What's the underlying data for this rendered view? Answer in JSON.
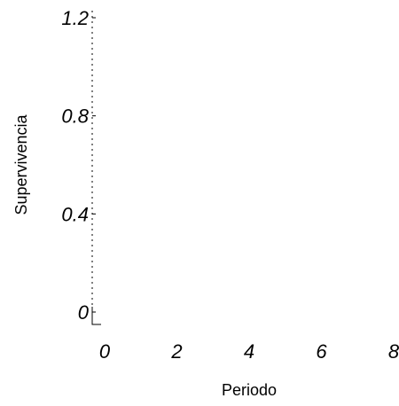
{
  "chart_data": {
    "type": "line",
    "title": "",
    "xlabel": "Periodo",
    "ylabel": "Supervivencia",
    "xlim": [
      0,
      8
    ],
    "ylim": [
      0,
      1.2
    ],
    "x_ticks": [
      {
        "value": 0,
        "label": "0"
      },
      {
        "value": 2,
        "label": "2"
      },
      {
        "value": 4,
        "label": "4"
      },
      {
        "value": 6,
        "label": "6"
      },
      {
        "value": 8,
        "label": "8"
      }
    ],
    "y_ticks": [
      {
        "value": 0,
        "label": "0"
      },
      {
        "value": 0.4,
        "label": "0.4"
      },
      {
        "value": 0.8,
        "label": "0.8"
      },
      {
        "value": 1.2,
        "label": "1.2"
      }
    ],
    "series": [],
    "grid": false,
    "legend": "none"
  }
}
